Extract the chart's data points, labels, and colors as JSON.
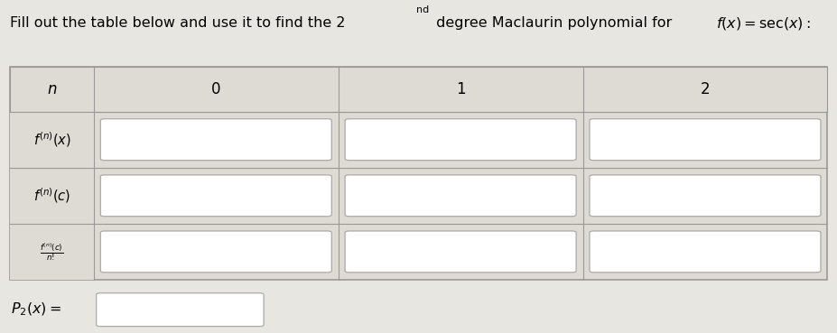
{
  "bg_color": "#e8e6e0",
  "table_bg": "#dedad4",
  "white": "#ffffff",
  "border_color": "#999999",
  "col_headers": [
    "n",
    "0",
    "1",
    "2"
  ],
  "row_labels_latex": [
    "$f^{(n)}(x)$",
    "$f^{(n)}(c)$",
    "$\\frac{f^{(n)}(c)}{n!}$"
  ],
  "title_plain": "Fill out the table below and use it to find the 2",
  "title_sup": "nd",
  "title_mid": " degree Maclaurin polynomial for   ",
  "title_math": "$f(x) = \\sec(x):$",
  "p2_label": "$P_2(x) =$",
  "fig_w": 9.28,
  "fig_h": 3.69,
  "dpi": 100
}
